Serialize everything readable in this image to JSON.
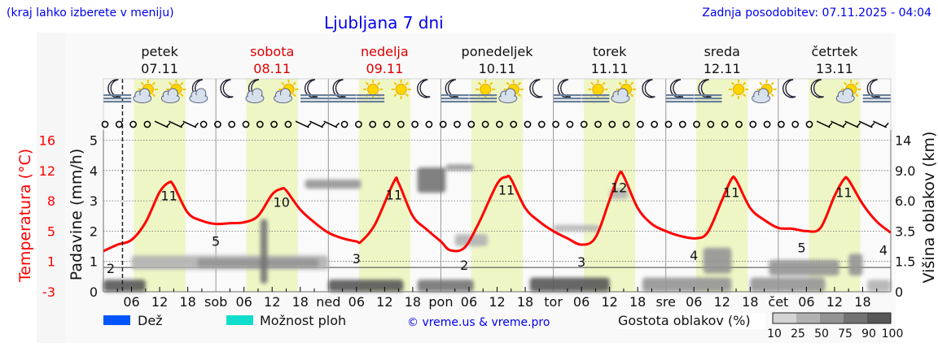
{
  "header": {
    "hint": "(kraj lahko izberete v meniju)",
    "title": "Ljubljana 7 dni",
    "updated": "Zadnja posodobitev: 07.11.2025 - 04:04"
  },
  "days": [
    {
      "name": "petek",
      "date": "07.11",
      "abbr": "",
      "weekend": false
    },
    {
      "name": "sobota",
      "date": "08.11",
      "abbr": "sob",
      "weekend": true
    },
    {
      "name": "nedelja",
      "date": "09.11",
      "abbr": "ned",
      "weekend": true
    },
    {
      "name": "ponedeljek",
      "date": "10.11",
      "abbr": "pon",
      "weekend": false
    },
    {
      "name": "torek",
      "date": "11.11",
      "abbr": "tor",
      "weekend": false
    },
    {
      "name": "sreda",
      "date": "12.11",
      "abbr": "sre",
      "weekend": false
    },
    {
      "name": "četrtek",
      "date": "13.11",
      "abbr": "čet",
      "weekend": false
    }
  ],
  "colors": {
    "temperature": "#ff0000",
    "rain": "#0055ff",
    "showers": "#11ddcc",
    "daylight": "#eff6c6",
    "weekend_text": "#dd0000",
    "link": "#0000ee"
  },
  "chart_data": {
    "type": "line",
    "xlabel": "",
    "hour_ticks": [
      "06",
      "12",
      "18"
    ],
    "now_hour": 4.07,
    "daylight_hours": [
      6.5,
      17.5
    ],
    "axes": {
      "left_temp": {
        "label": "Temperatura (°C)",
        "ticks": [
          "16",
          "12",
          "8",
          "5",
          "1",
          "-3"
        ],
        "range": [
          -3,
          16
        ]
      },
      "left_precip": {
        "label": "Padavine (mm/h)",
        "ticks": [
          "5",
          "4",
          "3",
          "2",
          "1",
          "0"
        ],
        "range": [
          0,
          5.5
        ]
      },
      "right_cloud": {
        "label": "Višina oblakov (km)",
        "ticks": [
          "14",
          "9.0",
          "6.0",
          "3.5",
          "1.5",
          "0"
        ],
        "tick_values": [
          14,
          9,
          6,
          3.5,
          1.5,
          0
        ]
      }
    },
    "grid": true,
    "temperature": {
      "hours": [
        0,
        3,
        6,
        9,
        12,
        14,
        15,
        18,
        21,
        24,
        27,
        30,
        33,
        36,
        38,
        39,
        42,
        45,
        48,
        51,
        54,
        55,
        58,
        62,
        63,
        66,
        69,
        72,
        74,
        77,
        80,
        84,
        86,
        87,
        90,
        93,
        96,
        99,
        102,
        105,
        108,
        110,
        111,
        114,
        117,
        120,
        123,
        126.5,
        129,
        132,
        134,
        135,
        138,
        141,
        144,
        147,
        150,
        153,
        156,
        158,
        159,
        162,
        165,
        168
      ],
      "values": [
        2.1,
        2.9,
        3.5,
        5.7,
        9.5,
        10.7,
        10.3,
        6.9,
        5.9,
        5.5,
        5.6,
        5.7,
        6.5,
        9.2,
        9.9,
        9.7,
        7.3,
        5.7,
        4.4,
        3.7,
        3.3,
        3.3,
        5.5,
        10.8,
        10.6,
        6.5,
        4.8,
        3.3,
        2.2,
        2.5,
        5.5,
        10.5,
        11.4,
        11.1,
        7.5,
        5.8,
        4.6,
        3.7,
        2.9,
        3.8,
        8.5,
        11.7,
        11.5,
        7.5,
        5.5,
        4.6,
        4.0,
        3.7,
        4.5,
        8.5,
        11.1,
        11.0,
        7.5,
        6.0,
        5.0,
        4.9,
        4.6,
        5.0,
        9.0,
        11.1,
        11.0,
        8.0,
        5.8,
        4.4
      ]
    },
    "temp_labels": [
      {
        "hour": 0,
        "text": "2",
        "kind": "min"
      },
      {
        "hour": 14,
        "text": "11",
        "kind": "max"
      },
      {
        "hour": 24,
        "text": "5",
        "kind": "min"
      },
      {
        "hour": 38,
        "text": "10",
        "kind": "max"
      },
      {
        "hour": 54,
        "text": "3",
        "kind": "min"
      },
      {
        "hour": 62,
        "text": "11",
        "kind": "max"
      },
      {
        "hour": 77,
        "text": "2",
        "kind": "min"
      },
      {
        "hour": 86,
        "text": "11",
        "kind": "max"
      },
      {
        "hour": 102,
        "text": "3",
        "kind": "min"
      },
      {
        "hour": 110,
        "text": "12",
        "kind": "max"
      },
      {
        "hour": 126,
        "text": "4",
        "kind": "min"
      },
      {
        "hour": 134,
        "text": "11",
        "kind": "max"
      },
      {
        "hour": 149,
        "text": "5",
        "kind": "min"
      },
      {
        "hour": 158,
        "text": "11",
        "kind": "max"
      },
      {
        "hour": 168,
        "text": "4",
        "kind": "min"
      }
    ],
    "precipitation": [],
    "clouds": [
      {
        "from": 0,
        "to": 9,
        "low_km": 0,
        "high_km": 0.6,
        "density": 90
      },
      {
        "from": 6,
        "to": 48,
        "low_km": 1.1,
        "high_km": 1.9,
        "density": 25
      },
      {
        "from": 20,
        "to": 46,
        "low_km": 1.2,
        "high_km": 1.7,
        "density": 50
      },
      {
        "from": 33.5,
        "to": 35,
        "low_km": 0.4,
        "high_km": 4.5,
        "density": 75
      },
      {
        "from": 43,
        "to": 55,
        "low_km": 7.2,
        "high_km": 8.1,
        "density": 50
      },
      {
        "from": 48,
        "to": 64,
        "low_km": 0,
        "high_km": 0.6,
        "density": 90
      },
      {
        "from": 67,
        "to": 73,
        "low_km": 6.8,
        "high_km": 9.5,
        "density": 75
      },
      {
        "from": 73,
        "to": 79,
        "low_km": 9.0,
        "high_km": 10.0,
        "density": 50
      },
      {
        "from": 67,
        "to": 79,
        "low_km": 0,
        "high_km": 0.6,
        "density": 75
      },
      {
        "from": 75,
        "to": 82,
        "low_km": 2.5,
        "high_km": 3.3,
        "density": 25
      },
      {
        "from": 91,
        "to": 108,
        "low_km": 0,
        "high_km": 0.7,
        "density": 90
      },
      {
        "from": 96,
        "to": 106,
        "low_km": 3.5,
        "high_km": 4.0,
        "density": 25
      },
      {
        "from": 108,
        "to": 112,
        "low_km": 6.2,
        "high_km": 7.2,
        "density": 25
      },
      {
        "from": 115,
        "to": 134,
        "low_km": 0,
        "high_km": 0.7,
        "density": 50
      },
      {
        "from": 128,
        "to": 134,
        "low_km": 0.9,
        "high_km": 2.4,
        "density": 50
      },
      {
        "from": 138,
        "to": 154,
        "low_km": 0,
        "high_km": 0.7,
        "density": 50
      },
      {
        "from": 142,
        "to": 157,
        "low_km": 0.8,
        "high_km": 1.6,
        "density": 50
      },
      {
        "from": 159,
        "to": 162,
        "low_km": 0.8,
        "high_km": 2.0,
        "density": 50
      },
      {
        "from": 163,
        "to": 168,
        "low_km": 0,
        "high_km": 0.6,
        "density": 25
      }
    ],
    "weather_icons": [
      "moon-fog",
      "sun-cloud",
      "sun-cloud",
      "moon-cloud",
      "moon",
      "moon-cloud",
      "sun-cloud",
      "moon-fog",
      "moon-fog",
      "sun-fog",
      "sun",
      "moon",
      "moon-fog",
      "sun-fog",
      "sun-cloud",
      "moon",
      "moon-fog",
      "sun-fog",
      "sun-cloud",
      "moon",
      "moon-fog",
      "moon-fog",
      "sun",
      "sun-cloud",
      "moon",
      "moon",
      "sun-cloud",
      "moon-fog"
    ],
    "wind": [
      "calm",
      "calm",
      "calm",
      "calm",
      "barb",
      "barb",
      "barb",
      "calm",
      "calm",
      "calm",
      "calm",
      "calm",
      "calm",
      "calm",
      "barb",
      "barb",
      "barb",
      "calm",
      "calm",
      "calm",
      "calm",
      "calm",
      "calm",
      "calm",
      "calm",
      "calm",
      "calm",
      "calm",
      "calm",
      "calm",
      "calm",
      "calm",
      "calm",
      "calm",
      "calm",
      "calm",
      "calm",
      "calm",
      "calm",
      "calm",
      "calm",
      "calm",
      "calm",
      "calm",
      "calm",
      "calm",
      "calm",
      "calm",
      "calm",
      "calm",
      "calm",
      "barb",
      "barb",
      "barb",
      "barb",
      "barb"
    ]
  },
  "legend": {
    "rain": "Dež",
    "showers": "Možnost ploh",
    "credit": "© vreme.us & vreme.pro",
    "cloud_density": "Gostota oblakov (%)",
    "density_steps": [
      "10",
      "25",
      "50",
      "75",
      "90",
      "100"
    ],
    "density_colors": [
      "#d4d4d4",
      "#b2b2b2",
      "#939393",
      "#737373",
      "#575757"
    ]
  }
}
